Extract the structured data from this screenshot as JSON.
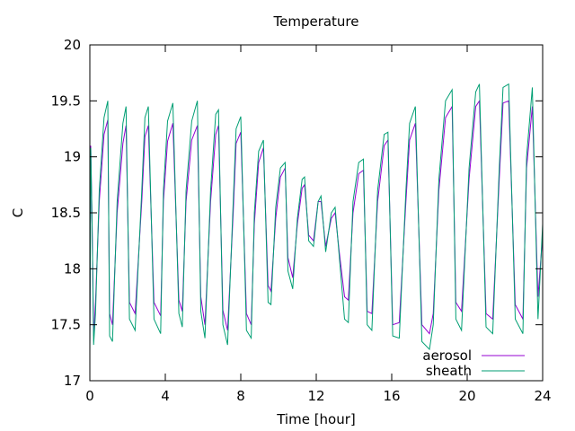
{
  "chart_data": {
    "type": "line",
    "title": "Temperature",
    "xlabel": "Time [hour]",
    "ylabel": "C",
    "xlim": [
      0,
      24
    ],
    "ylim": [
      17,
      20
    ],
    "x_ticks": [
      0,
      4,
      8,
      12,
      16,
      20,
      24
    ],
    "y_ticks": [
      17,
      17.5,
      18,
      18.5,
      19,
      19.5,
      20
    ],
    "grid": false,
    "legend_position": "bottom-right",
    "series": [
      {
        "name": "aerosol",
        "color": "#9400d3",
        "x": [
          0,
          0.05,
          0.12,
          0.2,
          0.3,
          0.5,
          0.75,
          0.95,
          1.05,
          1.2,
          1.45,
          1.75,
          1.92,
          2.1,
          2.4,
          2.75,
          2.92,
          3.1,
          3.4,
          3.75,
          3.9,
          4.12,
          4.4,
          4.72,
          4.9,
          5.1,
          5.4,
          5.7,
          5.88,
          6.1,
          6.4,
          6.67,
          6.82,
          7.05,
          7.3,
          7.6,
          7.75,
          8.0,
          8.3,
          8.55,
          8.72,
          8.95,
          9.2,
          9.45,
          9.6,
          9.85,
          10.1,
          10.35,
          10.5,
          10.75,
          11.0,
          11.25,
          11.38,
          11.6,
          11.85,
          12.1,
          12.25,
          12.5,
          12.8,
          13.0,
          13.2,
          13.5,
          13.7,
          13.95,
          14.25,
          14.5,
          14.7,
          14.95,
          15.25,
          15.6,
          15.8,
          16.05,
          16.4,
          16.75,
          16.95,
          17.25,
          17.6,
          18.0,
          18.2,
          18.5,
          18.85,
          19.2,
          19.4,
          19.7,
          20.1,
          20.45,
          20.65,
          21.0,
          21.35,
          21.7,
          21.9,
          22.2,
          22.55,
          22.95,
          23.15,
          23.45,
          23.75,
          24.0
        ],
        "values": [
          17.3,
          19.1,
          18.4,
          17.4,
          17.7,
          18.6,
          19.2,
          19.33,
          17.6,
          17.5,
          18.5,
          19.12,
          19.28,
          17.7,
          17.6,
          18.6,
          19.18,
          19.28,
          17.7,
          17.58,
          18.6,
          19.14,
          19.3,
          17.72,
          17.62,
          18.6,
          19.15,
          19.28,
          17.75,
          17.5,
          18.6,
          19.2,
          19.28,
          17.63,
          17.45,
          18.5,
          19.12,
          19.22,
          17.6,
          17.5,
          18.4,
          18.95,
          19.08,
          17.85,
          17.8,
          18.45,
          18.82,
          18.9,
          18.1,
          17.92,
          18.4,
          18.72,
          18.75,
          18.3,
          18.25,
          18.6,
          18.6,
          18.2,
          18.45,
          18.5,
          18.18,
          17.75,
          17.72,
          18.5,
          18.85,
          18.88,
          17.62,
          17.6,
          18.6,
          19.1,
          19.15,
          17.5,
          17.52,
          18.6,
          19.15,
          19.3,
          17.5,
          17.42,
          17.6,
          18.7,
          19.35,
          19.45,
          17.7,
          17.62,
          18.8,
          19.45,
          19.5,
          17.6,
          17.55,
          18.8,
          19.48,
          19.5,
          17.68,
          17.55,
          18.9,
          19.45,
          17.75,
          18.3
        ]
      },
      {
        "name": "sheath",
        "color": "#009e73",
        "x": [
          0,
          0.05,
          0.12,
          0.2,
          0.3,
          0.5,
          0.75,
          0.95,
          1.05,
          1.2,
          1.45,
          1.75,
          1.92,
          2.1,
          2.4,
          2.75,
          2.92,
          3.1,
          3.4,
          3.75,
          3.9,
          4.12,
          4.4,
          4.72,
          4.9,
          5.1,
          5.4,
          5.7,
          5.88,
          6.1,
          6.4,
          6.67,
          6.82,
          7.05,
          7.3,
          7.6,
          7.75,
          8.0,
          8.3,
          8.55,
          8.72,
          8.95,
          9.2,
          9.45,
          9.6,
          9.85,
          10.1,
          10.35,
          10.5,
          10.75,
          11.0,
          11.25,
          11.38,
          11.6,
          11.85,
          12.1,
          12.25,
          12.5,
          12.8,
          13.0,
          13.2,
          13.5,
          13.7,
          13.95,
          14.25,
          14.5,
          14.7,
          14.95,
          15.25,
          15.6,
          15.8,
          16.05,
          16.4,
          16.75,
          16.95,
          17.25,
          17.6,
          18.0,
          18.2,
          18.5,
          18.85,
          19.2,
          19.4,
          19.7,
          20.1,
          20.45,
          20.65,
          21.0,
          21.35,
          21.7,
          21.9,
          22.2,
          22.55,
          22.95,
          23.15,
          23.45,
          23.75,
          24.0
        ],
        "values": [
          17.25,
          19.08,
          18.4,
          17.32,
          17.6,
          18.7,
          19.35,
          19.5,
          17.4,
          17.35,
          18.6,
          19.3,
          19.45,
          17.55,
          17.45,
          18.7,
          19.35,
          19.45,
          17.55,
          17.42,
          18.7,
          19.32,
          19.48,
          17.6,
          17.48,
          18.7,
          19.32,
          19.5,
          17.62,
          17.38,
          18.7,
          19.38,
          19.42,
          17.5,
          17.32,
          18.6,
          19.25,
          19.36,
          17.45,
          17.38,
          18.5,
          19.05,
          19.15,
          17.7,
          17.68,
          18.55,
          18.9,
          18.95,
          17.98,
          17.82,
          18.45,
          18.8,
          18.82,
          18.25,
          18.2,
          18.6,
          18.65,
          18.15,
          18.5,
          18.55,
          18.15,
          17.55,
          17.52,
          18.6,
          18.95,
          18.98,
          17.5,
          17.45,
          18.7,
          19.2,
          19.22,
          17.4,
          17.38,
          18.7,
          19.3,
          19.45,
          17.35,
          17.28,
          17.5,
          18.8,
          19.5,
          19.6,
          17.55,
          17.45,
          18.9,
          19.58,
          19.65,
          17.48,
          17.42,
          18.9,
          19.62,
          19.65,
          17.55,
          17.42,
          19.0,
          19.62,
          17.55,
          18.4
        ]
      }
    ]
  }
}
